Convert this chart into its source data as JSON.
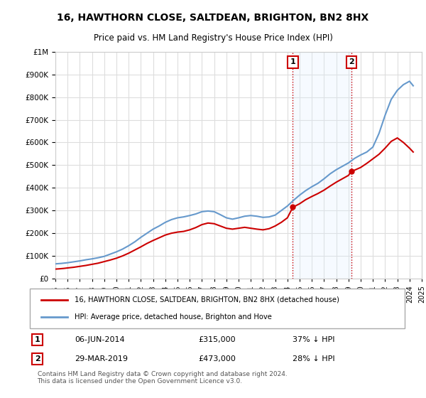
{
  "title": "16, HAWTHORN CLOSE, SALTDEAN, BRIGHTON, BN2 8HX",
  "subtitle": "Price paid vs. HM Land Registry's House Price Index (HPI)",
  "footer": "Contains HM Land Registry data © Crown copyright and database right 2024.\nThis data is licensed under the Open Government Licence v3.0.",
  "legend_line1": "16, HAWTHORN CLOSE, SALTDEAN, BRIGHTON, BN2 8HX (detached house)",
  "legend_line2": "HPI: Average price, detached house, Brighton and Hove",
  "marker1_date": "06-JUN-2014",
  "marker1_price": 315000,
  "marker1_label": "37% ↓ HPI",
  "marker2_date": "29-MAR-2019",
  "marker2_price": 473000,
  "marker2_label": "28% ↓ HPI",
  "hpi_color": "#6699cc",
  "price_color": "#cc0000",
  "marker_color": "#cc0000",
  "background_color": "#ffffff",
  "grid_color": "#dddddd",
  "shade_color": "#ddeeff",
  "hpi_x": [
    1995,
    1995.5,
    1996,
    1996.5,
    1997,
    1997.5,
    1998,
    1998.5,
    1999,
    1999.5,
    2000,
    2000.5,
    2001,
    2001.5,
    2002,
    2002.5,
    2003,
    2003.5,
    2004,
    2004.5,
    2005,
    2005.5,
    2006,
    2006.5,
    2007,
    2007.5,
    2008,
    2008.5,
    2009,
    2009.5,
    2010,
    2010.5,
    2011,
    2011.5,
    2012,
    2012.5,
    2013,
    2013.5,
    2014,
    2014.5,
    2015,
    2015.5,
    2016,
    2016.5,
    2017,
    2017.5,
    2018,
    2018.5,
    2019,
    2019.5,
    2020,
    2020.5,
    2021,
    2021.5,
    2022,
    2022.5,
    2023,
    2023.5,
    2024,
    2024.3
  ],
  "hpi_y": [
    65000,
    67000,
    70000,
    74000,
    78000,
    83000,
    87000,
    92000,
    98000,
    108000,
    118000,
    130000,
    145000,
    162000,
    182000,
    200000,
    218000,
    232000,
    248000,
    260000,
    268000,
    272000,
    278000,
    285000,
    295000,
    298000,
    295000,
    282000,
    268000,
    262000,
    268000,
    275000,
    278000,
    275000,
    270000,
    272000,
    280000,
    300000,
    320000,
    345000,
    368000,
    388000,
    405000,
    420000,
    440000,
    462000,
    480000,
    495000,
    510000,
    530000,
    545000,
    558000,
    580000,
    640000,
    720000,
    790000,
    830000,
    855000,
    870000,
    850000
  ],
  "price_x": [
    1995,
    1995.3,
    1995.7,
    1996,
    1996.5,
    1997,
    1997.5,
    1998,
    1998.5,
    1999,
    1999.5,
    2000,
    2000.5,
    2001,
    2001.5,
    2002,
    2002.5,
    2003,
    2003.5,
    2004,
    2004.5,
    2005,
    2005.5,
    2006,
    2006.5,
    2007,
    2007.5,
    2008,
    2008.5,
    2009,
    2009.5,
    2010,
    2010.5,
    2011,
    2011.5,
    2012,
    2012.5,
    2013,
    2013.5,
    2014,
    2014.45,
    2014.5,
    2015,
    2015.5,
    2016,
    2016.5,
    2017,
    2017.5,
    2018,
    2018.5,
    2019,
    2019.23,
    2019.5,
    2020,
    2020.5,
    2021,
    2021.5,
    2022,
    2022.5,
    2023,
    2023.5,
    2024,
    2024.3
  ],
  "price_y": [
    42000,
    43000,
    45000,
    47000,
    50000,
    54000,
    58000,
    63000,
    68000,
    75000,
    82000,
    90000,
    100000,
    112000,
    126000,
    140000,
    155000,
    168000,
    180000,
    192000,
    200000,
    205000,
    208000,
    215000,
    225000,
    238000,
    245000,
    242000,
    232000,
    222000,
    218000,
    222000,
    226000,
    222000,
    218000,
    215000,
    220000,
    232000,
    248000,
    268000,
    315000,
    316000,
    330000,
    348000,
    362000,
    375000,
    390000,
    408000,
    425000,
    440000,
    455000,
    473000,
    478000,
    490000,
    508000,
    528000,
    548000,
    575000,
    605000,
    620000,
    600000,
    575000,
    558000
  ],
  "xmin": 1995,
  "xmax": 2025,
  "ymin": 0,
  "ymax": 1000000,
  "yticks": [
    0,
    100000,
    200000,
    300000,
    400000,
    500000,
    600000,
    700000,
    800000,
    900000,
    1000000
  ],
  "xticks": [
    1995,
    1996,
    1997,
    1998,
    1999,
    2000,
    2001,
    2002,
    2003,
    2004,
    2005,
    2006,
    2007,
    2008,
    2009,
    2010,
    2011,
    2012,
    2013,
    2014,
    2015,
    2016,
    2017,
    2018,
    2019,
    2020,
    2021,
    2022,
    2023,
    2024,
    2025
  ],
  "marker1_x": 2014.44,
  "marker2_x": 2019.23,
  "shade_x1": 2014.44,
  "shade_x2": 2019.23
}
